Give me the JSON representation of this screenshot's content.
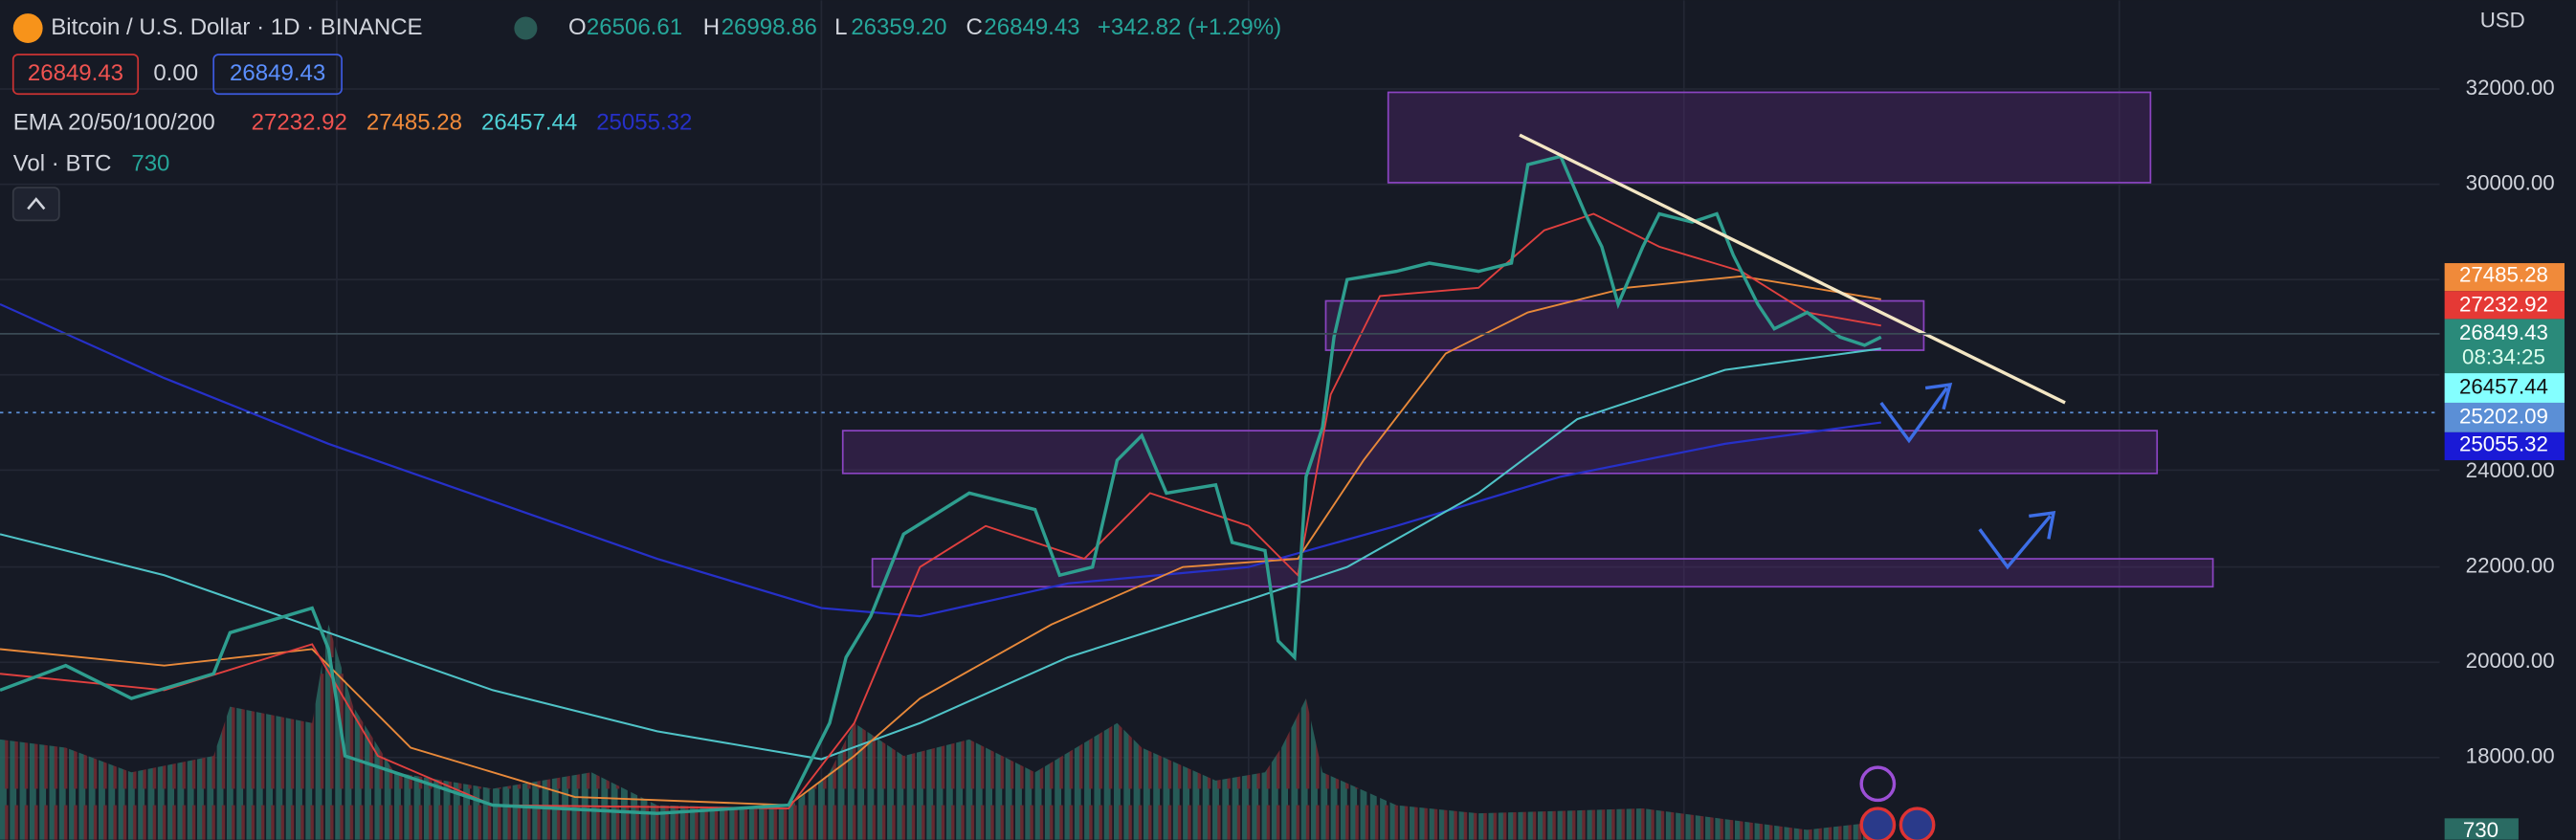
{
  "header": {
    "symbol": "Bitcoin / U.S. Dollar · 1D · BINANCE",
    "open_label": "O",
    "open": "26506.61",
    "high_label": "H",
    "high": "26998.86",
    "low_label": "L",
    "low": "26359.20",
    "close_label": "C",
    "close": "26849.43",
    "change": "+342.82 (+1.29%)"
  },
  "order": {
    "sell": "26849.43",
    "spread": "0.00",
    "buy": "26849.43"
  },
  "ema": {
    "label": "EMA 20/50/100/200",
    "values": [
      "27232.92",
      "27485.28",
      "26457.44",
      "25055.32"
    ]
  },
  "volume": {
    "label": "Vol · BTC",
    "value": "730"
  },
  "currency": "USD",
  "price_axis": [
    "32000.00",
    "30000.00",
    "24000.00",
    "22000.00",
    "20000.00",
    "18000.00"
  ],
  "badges": {
    "ema50": "27485.28",
    "ema20": "27232.92",
    "last": "26849.43",
    "countdown": "08:34:25",
    "ema100": "26457.44",
    "crosshair": "25202.09",
    "ema200": "25055.32",
    "volume": "730"
  }
}
